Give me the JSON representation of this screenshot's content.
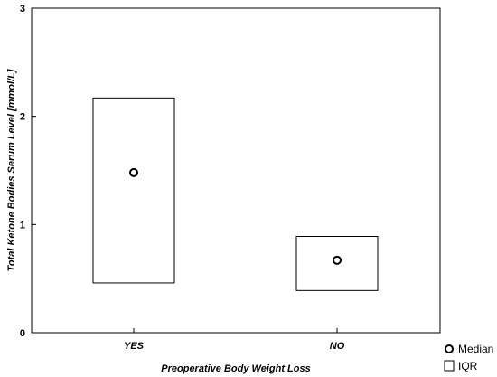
{
  "chart_data": {
    "type": "box",
    "categories": [
      "YES",
      "NO"
    ],
    "series": [
      {
        "name": "Median",
        "values": [
          1.48,
          0.67
        ]
      },
      {
        "name": "IQR",
        "values": [
          [
            0.46,
            2.17
          ],
          [
            0.39,
            0.89
          ]
        ]
      }
    ],
    "xlabel": "Preoperative Body Weight Loss",
    "ylabel": "Total Ketone Bodies Serum Level [mmol/L]",
    "ylim": [
      0,
      3
    ],
    "yticks": [
      "0",
      "1",
      "2",
      "3"
    ],
    "grid": false,
    "legend_position": "bottom-right",
    "legend": [
      {
        "label": "Median",
        "marker": "circle"
      },
      {
        "label": "IQR",
        "marker": "square"
      }
    ],
    "colors": {
      "box_stroke": "#000000",
      "box_fill": "#ffffff",
      "marker_stroke": "#000000"
    }
  }
}
